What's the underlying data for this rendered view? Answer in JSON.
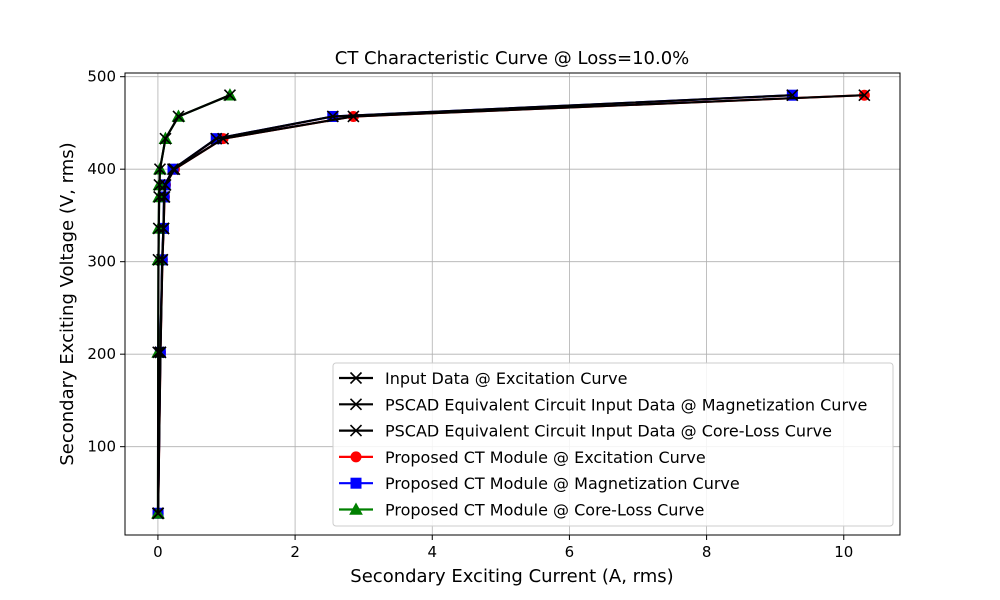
{
  "chart_data": {
    "type": "line",
    "title": "CT Characteristic Curve  @ Loss=10.0%",
    "xlabel": "Secondary Exciting Current (A, rms)",
    "ylabel": "Secondary Exciting Voltage (V, rms)",
    "xlim": [
      -0.48,
      10.82
    ],
    "ylim": [
      4.5,
      504
    ],
    "xticks": [
      0,
      2,
      4,
      6,
      8,
      10
    ],
    "yticks": [
      100,
      200,
      300,
      400,
      500
    ],
    "grid": true,
    "legend_position": "lower-right",
    "series": [
      {
        "name": "Input Data @ Excitation Curve",
        "color": "#000000",
        "marker": "x",
        "x": [
          0.003,
          0.037,
          0.065,
          0.083,
          0.095,
          0.11,
          0.24,
          0.95,
          2.85,
          10.3
        ],
        "y": [
          28,
          202,
          302,
          336,
          370,
          383,
          400,
          433,
          457,
          480
        ]
      },
      {
        "name": "PSCAD Equivalent Circuit Input Data @ Magnetization Curve",
        "color": "#000000",
        "marker": "x",
        "x": [
          0.002,
          0.035,
          0.062,
          0.08,
          0.09,
          0.105,
          0.22,
          0.85,
          2.55,
          9.25
        ],
        "y": [
          28,
          202,
          302,
          336,
          370,
          383,
          400,
          433,
          457,
          480
        ]
      },
      {
        "name": "PSCAD Equivalent Circuit Input Data @ Core-Loss Curve",
        "color": "#000000",
        "marker": "x",
        "x": [
          0.001,
          0.004,
          0.008,
          0.012,
          0.018,
          0.022,
          0.03,
          0.11,
          0.3,
          1.05
        ],
        "y": [
          28,
          202,
          302,
          336,
          370,
          383,
          400,
          433,
          457,
          480
        ]
      },
      {
        "name": "Proposed CT Module @ Excitation Curve",
        "color": "#ff0000",
        "marker": "o",
        "x": [
          0.003,
          0.037,
          0.065,
          0.083,
          0.095,
          0.11,
          0.24,
          0.95,
          2.85,
          10.3
        ],
        "y": [
          28,
          202,
          302,
          336,
          370,
          383,
          400,
          433,
          457,
          480
        ]
      },
      {
        "name": "Proposed CT Module @ Magnetization Curve",
        "color": "#0000ff",
        "marker": "s",
        "x": [
          0.002,
          0.035,
          0.062,
          0.08,
          0.09,
          0.105,
          0.22,
          0.85,
          2.55,
          9.25
        ],
        "y": [
          28,
          202,
          302,
          336,
          370,
          383,
          400,
          433,
          457,
          480
        ]
      },
      {
        "name": "Proposed CT Module @ Core-Loss Curve",
        "color": "#008000",
        "marker": "^",
        "x": [
          0.001,
          0.004,
          0.008,
          0.012,
          0.018,
          0.022,
          0.03,
          0.11,
          0.3,
          1.05
        ],
        "y": [
          28,
          202,
          302,
          336,
          370,
          383,
          400,
          433,
          457,
          480
        ]
      }
    ]
  }
}
